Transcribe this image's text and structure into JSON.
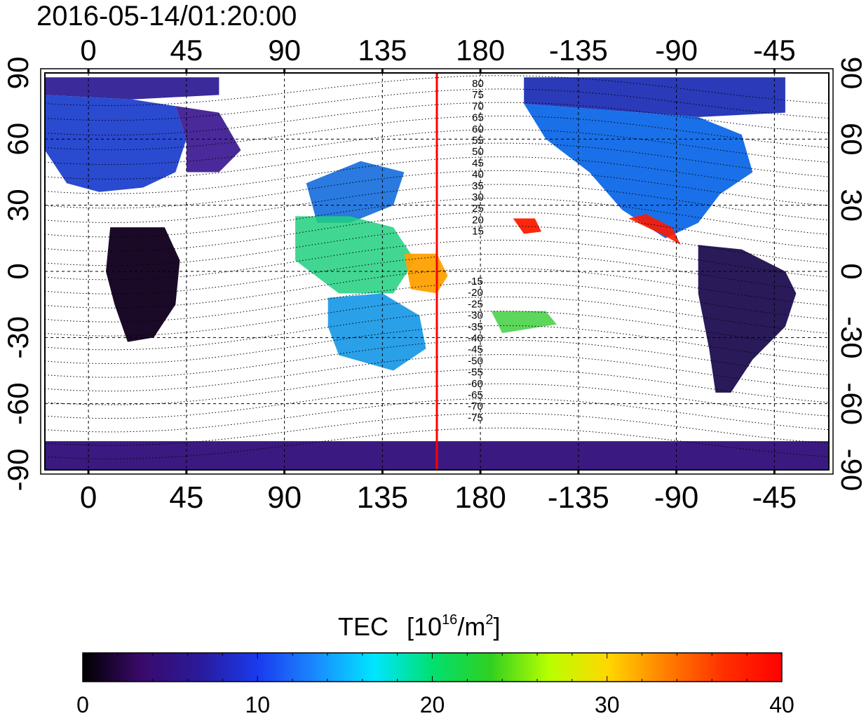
{
  "title": "2016-05-14/01:20:00",
  "top_lon_ticks": [
    "0",
    "45",
    "90",
    "135",
    "180",
    "-135",
    "-90",
    "-45"
  ],
  "bottom_lon_ticks": [
    "0",
    "45",
    "90",
    "135",
    "180",
    "-135",
    "-90",
    "-45"
  ],
  "left_lat_ticks": [
    "90",
    "60",
    "30",
    "0",
    "-30",
    "-60",
    "-90"
  ],
  "right_lat_ticks": [
    "90",
    "60",
    "30",
    "0",
    "-30",
    "-60",
    "-90"
  ],
  "contour_labels": {
    "north": [
      "80",
      "75",
      "70",
      "65",
      "60",
      "55",
      "50",
      "45",
      "40",
      "35",
      "30",
      "25",
      "20",
      "15"
    ],
    "south": [
      "-15",
      "-20",
      "-25",
      "-30",
      "-35",
      "-40",
      "-45",
      "-50",
      "-55",
      "-60",
      "-65",
      "-70",
      "-75"
    ]
  },
  "colorbar": {
    "title": "TEC",
    "unit_base": "[10",
    "unit_exp": "16",
    "unit_mid": "/m",
    "unit_exp2": "2",
    "unit_close": "]",
    "tick_labels": [
      "0",
      "10",
      "20",
      "30",
      "40"
    ],
    "range": [
      0,
      40
    ],
    "stops": [
      "#000000",
      "#3a0a6a",
      "#2a1a9a",
      "#1a3aee",
      "#1a8aff",
      "#00e6ff",
      "#00e070",
      "#30d020",
      "#b8ff00",
      "#ffd800",
      "#ff8000",
      "#ff3000",
      "#ff0000"
    ]
  },
  "marker": {
    "longitude": 160,
    "color": "#ff0000"
  },
  "colors": {
    "polar_cap": "#3a1a80",
    "europe": "#2a4ad0",
    "north_america": "#1a70e8",
    "south_america": "#2a1a5a",
    "africa": "#1a0a28",
    "australia": "#2aa0e8",
    "asia_green": "#20d080",
    "pacific_red": "#ff1a00",
    "pacific_orange": "#ffa000"
  }
}
